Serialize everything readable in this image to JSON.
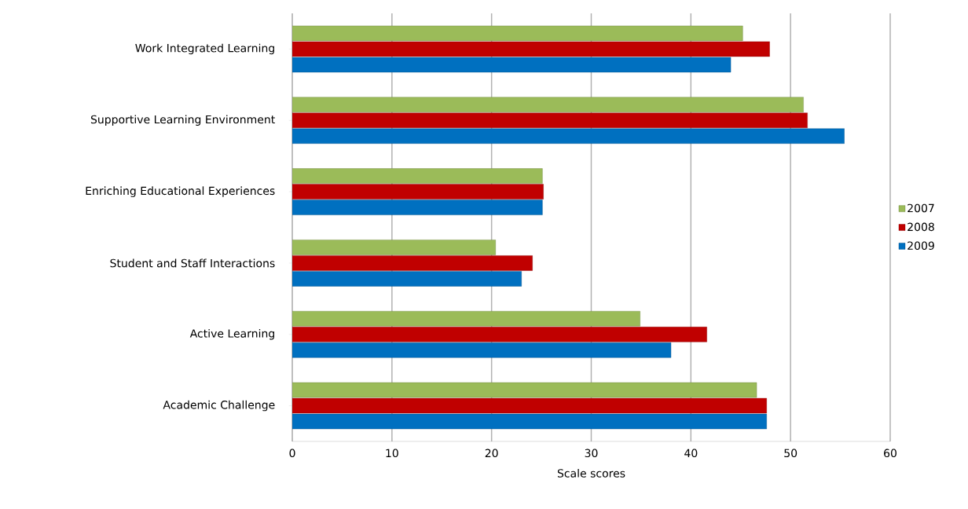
{
  "chart_data": {
    "type": "bar",
    "orientation": "horizontal",
    "xlabel": "Scale scores",
    "categories": [
      "Work Integrated Learning",
      "Supportive Learning Environment",
      "Enriching Educational Experiences",
      "Student and Staff Interactions",
      "Active Learning",
      "Academic Challenge"
    ],
    "series": [
      {
        "name": "2007",
        "color": "#9bbb59",
        "values": [
          45.2,
          51.3,
          25.1,
          20.4,
          34.9,
          46.6
        ]
      },
      {
        "name": "2008",
        "color": "#c00000",
        "values": [
          47.9,
          51.7,
          25.2,
          24.1,
          41.6,
          47.6
        ]
      },
      {
        "name": "2009",
        "color": "#0070c0",
        "values": [
          44.0,
          55.4,
          25.1,
          23.0,
          38.0,
          47.6
        ]
      }
    ],
    "xlim": [
      0,
      60
    ],
    "xticks": [
      0,
      10,
      20,
      30,
      40,
      50,
      60
    ],
    "grid": "x",
    "legend": "right"
  }
}
